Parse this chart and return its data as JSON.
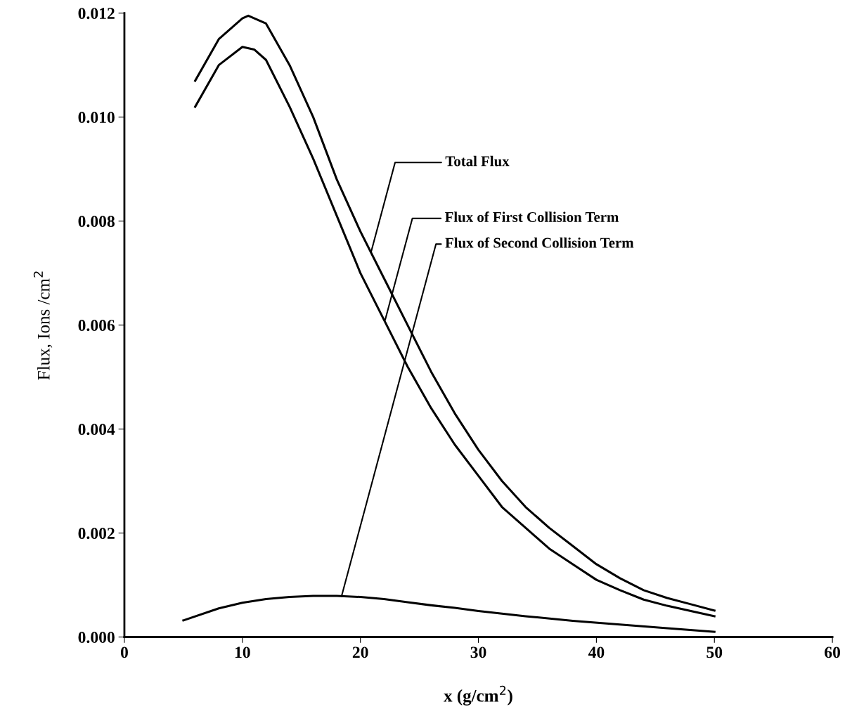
{
  "chart_data": {
    "type": "line",
    "xlabel": "x (g/cm$^{2}$)",
    "ylabel": "Flux, Ions /cm$^{2}$",
    "xlim": [
      0,
      60
    ],
    "xticks": [
      0,
      10,
      20,
      30,
      40,
      50,
      60
    ],
    "ylim": [
      0,
      0.012
    ],
    "yticks": [
      {
        "value": 0,
        "label": "0.000"
      },
      {
        "value": 0.002,
        "label": "0.002"
      },
      {
        "value": 0.004,
        "label": "0.004"
      },
      {
        "value": 0.006,
        "label": "0.006"
      },
      {
        "value": 0.008,
        "label": "0.008"
      },
      {
        "value": 0.01,
        "label": "0.010"
      },
      {
        "value": 0.012,
        "label": "0.012"
      }
    ],
    "grid": false,
    "legend": false,
    "marker": "none",
    "line_style": "solid",
    "series": [
      {
        "color": "#000000",
        "x": [
          6,
          8,
          10,
          10.5,
          12,
          14,
          16,
          18,
          20,
          22,
          24,
          26,
          28,
          30,
          32,
          34,
          36,
          38,
          40,
          42,
          44,
          46,
          48,
          50
        ],
        "values": [
          0.0107,
          0.0115,
          0.0119,
          0.01195,
          0.0118,
          0.011,
          0.01,
          0.0088,
          0.0078,
          0.0069,
          0.006,
          0.0051,
          0.0043,
          0.0036,
          0.003,
          0.0025,
          0.0021,
          0.00175,
          0.0014,
          0.00113,
          0.0009,
          0.00075,
          0.00063,
          0.00051
        ]
      },
      {
        "color": "#000000",
        "x": [
          6,
          8,
          10,
          11,
          12,
          14,
          16,
          18,
          20,
          22,
          24,
          26,
          28,
          30,
          32,
          34,
          36,
          38,
          40,
          42,
          44,
          46,
          48,
          50
        ],
        "values": [
          0.0102,
          0.011,
          0.01135,
          0.0113,
          0.0111,
          0.0102,
          0.0092,
          0.0081,
          0.007,
          0.0061,
          0.0052,
          0.0044,
          0.0037,
          0.0031,
          0.0025,
          0.0021,
          0.0017,
          0.0014,
          0.0011,
          0.0009,
          0.00072,
          0.0006,
          0.0005,
          0.0004
        ]
      },
      {
        "color": "#000000",
        "x": [
          5,
          8,
          10,
          12,
          14,
          16,
          18,
          20,
          22,
          24,
          26,
          28,
          30,
          34,
          38,
          42,
          46,
          50
        ],
        "values": [
          0.00032,
          0.00055,
          0.00066,
          0.00073,
          0.00077,
          0.00079,
          0.00079,
          0.00077,
          0.00073,
          0.00067,
          0.00061,
          0.00056,
          0.0005,
          0.0004,
          0.00031,
          0.00024,
          0.00017,
          0.0001
        ]
      }
    ],
    "annotations": [
      {
        "text": "Total Flux",
        "x": 20.9,
        "y": 0.0074
      },
      {
        "text": "Flux of First Collision Term",
        "x": 22.1,
        "y": 0.0061
      },
      {
        "text": "Flux of Second Collision Term",
        "x": 18.4,
        "y": 0.00078
      }
    ]
  }
}
